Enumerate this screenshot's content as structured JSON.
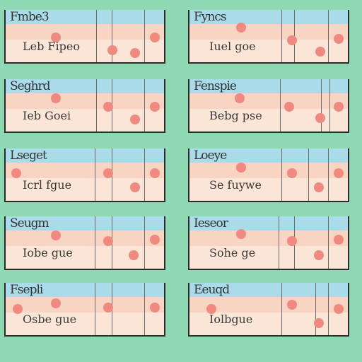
{
  "cards": [
    {
      "title": "Fmbe3",
      "label": "Leb Fipeo"
    },
    {
      "title": "Fyncs",
      "label": "Iuel goe"
    },
    {
      "title": "Seghrd",
      "label": "Ieb Goei"
    },
    {
      "title": "Fenspie",
      "label": "Bebg pse"
    },
    {
      "title": "Lseget",
      "label": "Icrl fgue"
    },
    {
      "title": "Loeye",
      "label": "Se fuywe"
    },
    {
      "title": "Seugm",
      "label": "Iobe gue"
    },
    {
      "title": "Ieseor",
      "label": "Sohe ge"
    },
    {
      "title": "Fsepli",
      "label": "Osbe gue"
    },
    {
      "title": "Eeuqd",
      "label": "Iolbgue"
    }
  ],
  "colors": {
    "background": "#8ed8b4",
    "header_band": "#a9dce8",
    "row_band": "#f8d4c2",
    "body": "#fbe5d6",
    "dot": "#f08a80"
  }
}
